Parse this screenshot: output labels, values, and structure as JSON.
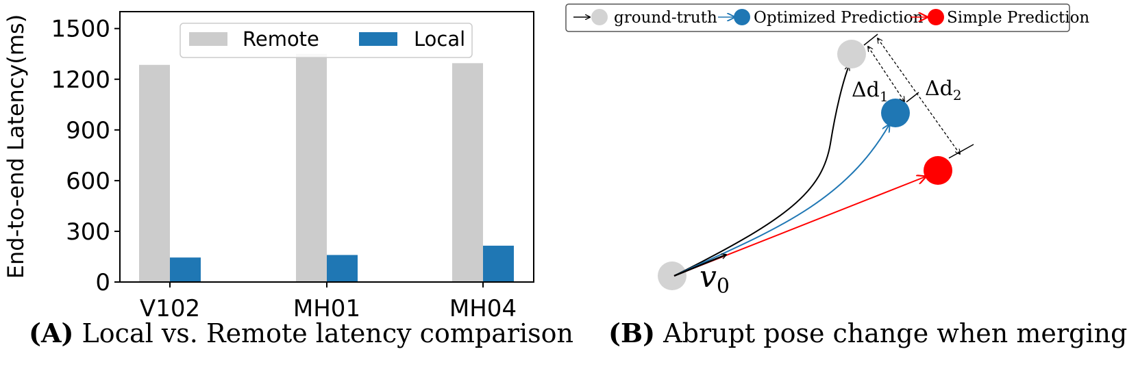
{
  "chart_data": [
    {
      "type": "bar",
      "ylabel": "End-to-end Latency(ms)",
      "categories": [
        "V102",
        "MH01",
        "MH04"
      ],
      "series": [
        {
          "name": "Remote",
          "values": [
            1285,
            1350,
            1295
          ]
        },
        {
          "name": "Local",
          "values": [
            145,
            160,
            215
          ]
        }
      ],
      "ylim": [
        0,
        1600
      ],
      "yticks": [
        "0",
        "300",
        "600",
        "900",
        "1200",
        "1500"
      ],
      "legend_position": "top",
      "colors": {
        "Remote": "#cccccc",
        "Local": "#1f77b4"
      }
    }
  ],
  "captions": {
    "a_letter": "(A)",
    "a_text": "Local vs. Remote latency comparison",
    "b_letter": "(B)",
    "b_text": "Abrupt pose change when merging"
  },
  "diagram": {
    "legend": {
      "ground_truth": "ground-truth",
      "optimized": "Optimized Prediction",
      "simple": "Simple Prediction"
    },
    "labels": {
      "v0": "v",
      "v0_sub": "0",
      "d1": "Δd",
      "d1_sub": "1",
      "d2": "Δd",
      "d2_sub": "2"
    },
    "colors": {
      "ground_truth": "#d3d3d3",
      "optimized": "#1f77b4",
      "simple": "#ff0000"
    }
  }
}
